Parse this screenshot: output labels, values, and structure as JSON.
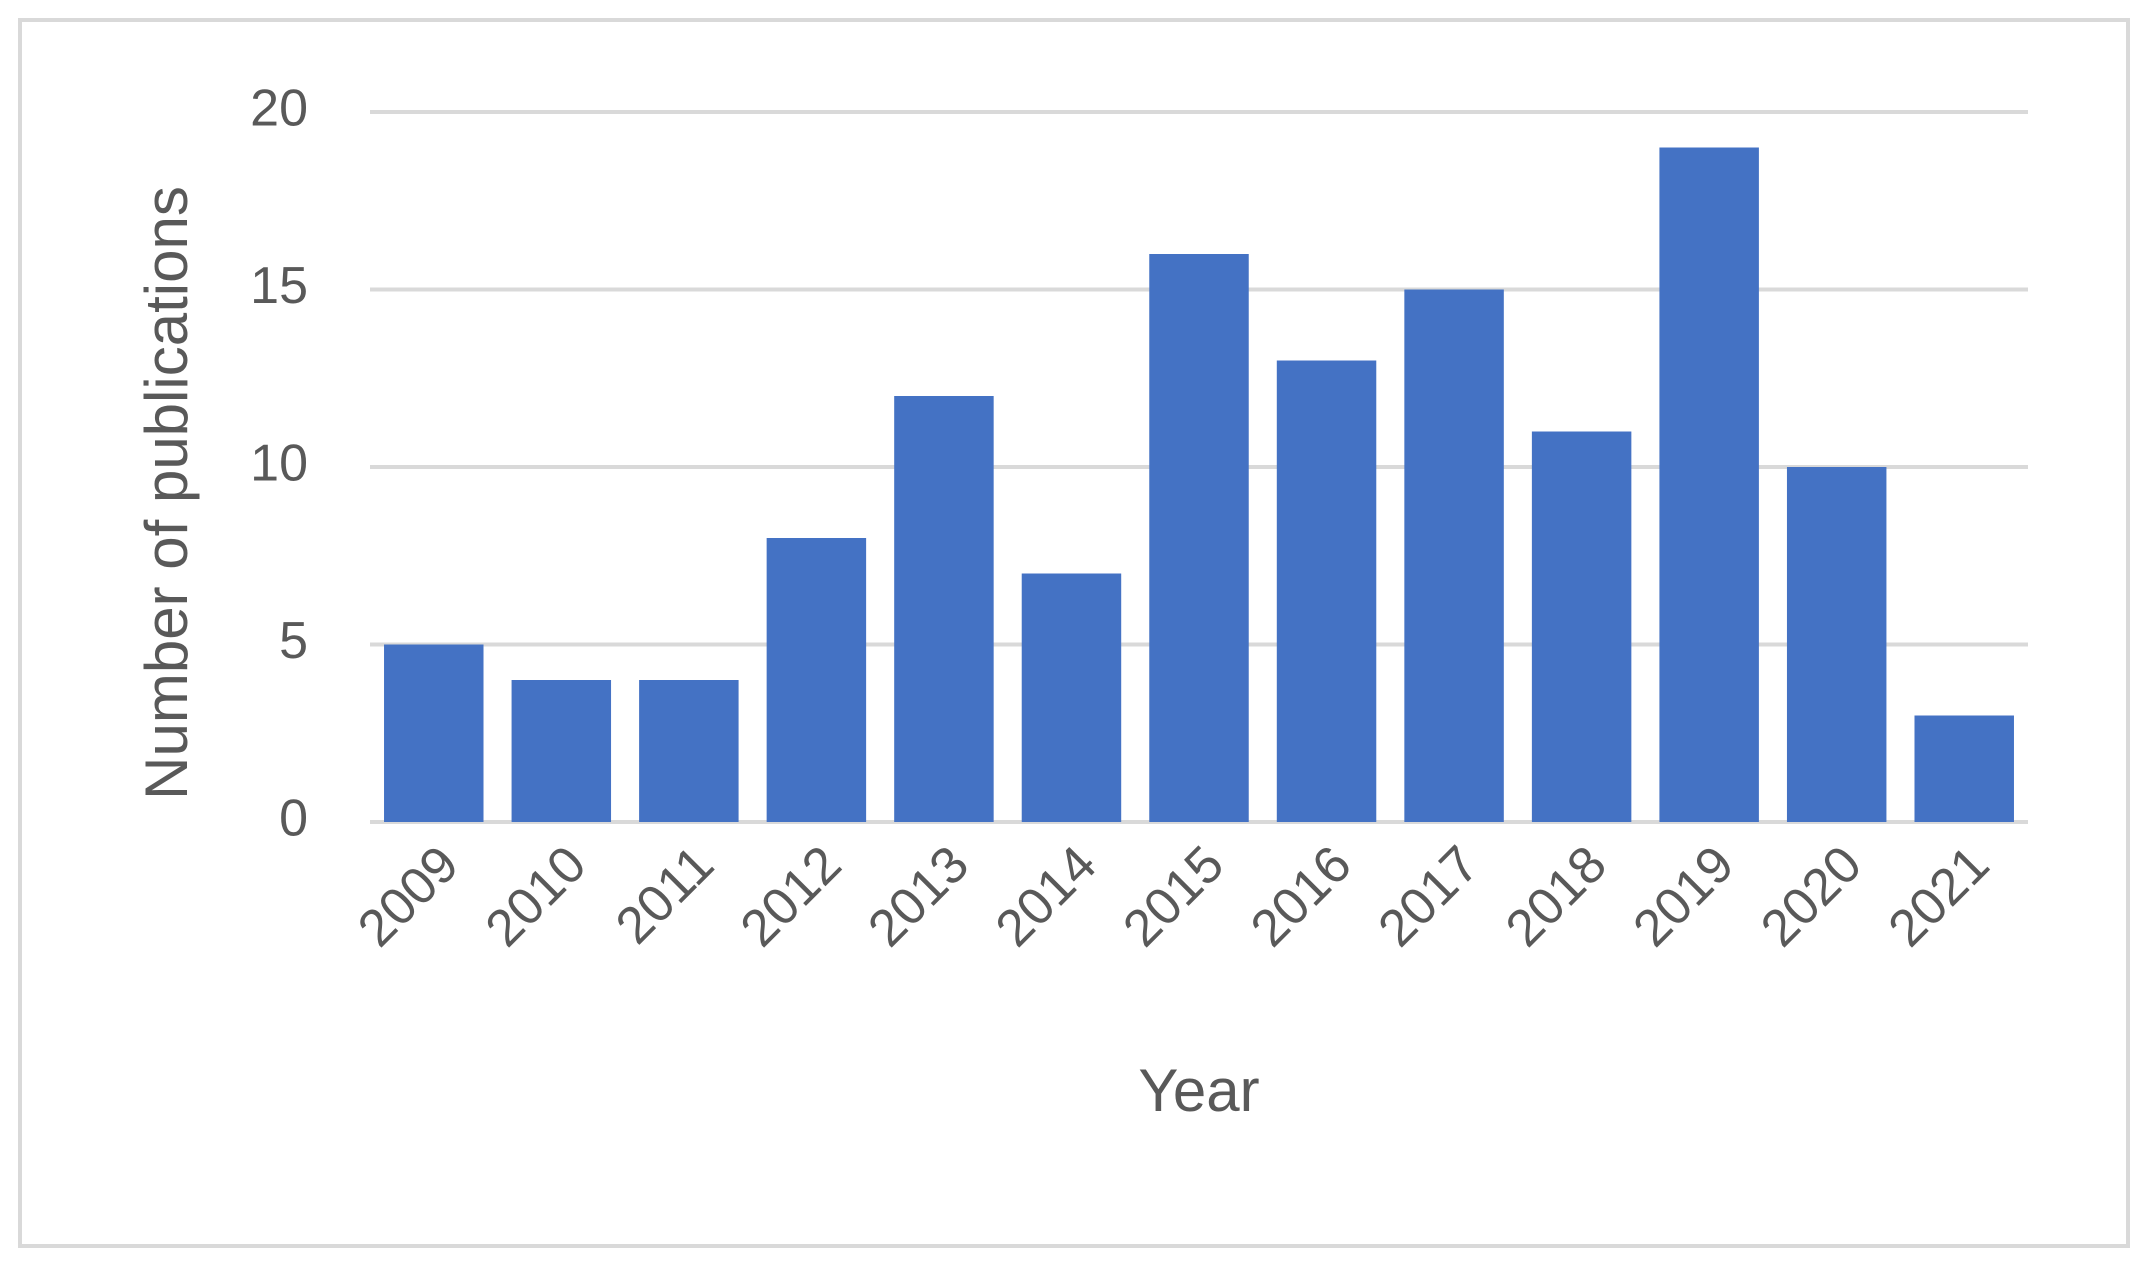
{
  "chart_data": {
    "type": "bar",
    "x_label": "Year",
    "y_label": "Number of publications",
    "categories": [
      "2009",
      "2010",
      "2011",
      "2012",
      "2013",
      "2014",
      "2015",
      "2016",
      "2017",
      "2018",
      "2019",
      "2020",
      "2021"
    ],
    "values": [
      5,
      4,
      4,
      8,
      12,
      7,
      16,
      13,
      15,
      11,
      19,
      10,
      3
    ],
    "color": "#4472c4",
    "ylim": [
      0,
      20
    ],
    "yticks": [
      0,
      5,
      10,
      15,
      20
    ],
    "grid": true
  }
}
